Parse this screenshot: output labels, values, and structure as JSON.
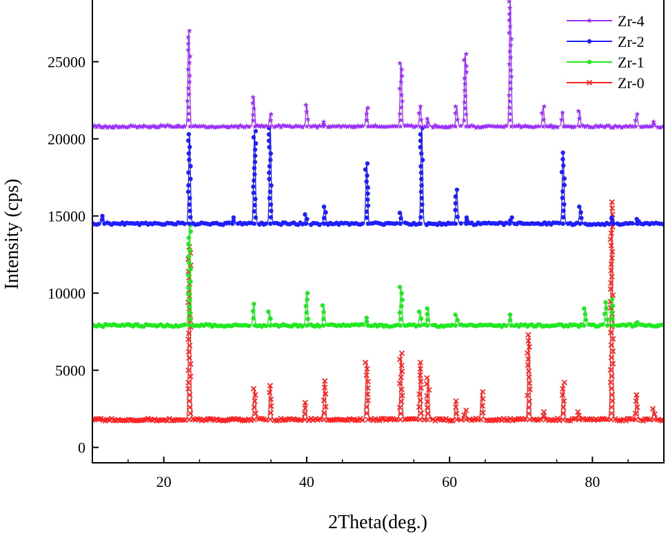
{
  "chart_data": {
    "type": "line",
    "title": "",
    "xlabel": "2Theta(deg.)",
    "ylabel": "Intensity (cps)",
    "xlim": [
      10,
      90
    ],
    "ylim": [
      -1000,
      29000
    ],
    "x_ticks": [
      20,
      40,
      60,
      80
    ],
    "x_tick_labels": [
      "20",
      "40",
      "60",
      "80"
    ],
    "y_ticks": [
      0,
      5000,
      10000,
      15000,
      20000,
      25000
    ],
    "y_tick_labels": [
      "0",
      "5000",
      "10000",
      "15000",
      "20000",
      "25000"
    ],
    "grid": false,
    "legend_position": "top-right",
    "series": [
      {
        "name": "Zr-4",
        "color": "#9b30ff",
        "marker": "star",
        "baseline": 20800,
        "peaks": [
          {
            "x": 23.5,
            "y": 27000
          },
          {
            "x": 32.6,
            "y": 22700
          },
          {
            "x": 34.9,
            "y": 21600
          },
          {
            "x": 40.0,
            "y": 22200
          },
          {
            "x": 42.4,
            "y": 21100
          },
          {
            "x": 48.4,
            "y": 22000
          },
          {
            "x": 53.2,
            "y": 24900
          },
          {
            "x": 55.9,
            "y": 22100
          },
          {
            "x": 57.0,
            "y": 21300
          },
          {
            "x": 61.0,
            "y": 22100
          },
          {
            "x": 62.2,
            "y": 25500
          },
          {
            "x": 68.5,
            "y": 28900
          },
          {
            "x": 73.1,
            "y": 22100
          },
          {
            "x": 75.8,
            "y": 21700
          },
          {
            "x": 78.2,
            "y": 21800
          },
          {
            "x": 86.2,
            "y": 21600
          },
          {
            "x": 88.5,
            "y": 21100
          }
        ]
      },
      {
        "name": "Zr-2",
        "color": "#1e1eff",
        "marker": "circle",
        "baseline": 14500,
        "peaks": [
          {
            "x": 11.5,
            "y": 15000
          },
          {
            "x": 23.6,
            "y": 20300
          },
          {
            "x": 29.8,
            "y": 14900
          },
          {
            "x": 32.7,
            "y": 20500
          },
          {
            "x": 34.9,
            "y": 20700
          },
          {
            "x": 39.9,
            "y": 15100
          },
          {
            "x": 42.5,
            "y": 15600
          },
          {
            "x": 48.4,
            "y": 18400
          },
          {
            "x": 53.2,
            "y": 15200
          },
          {
            "x": 56.1,
            "y": 20700
          },
          {
            "x": 61.0,
            "y": 16700
          },
          {
            "x": 62.3,
            "y": 14900
          },
          {
            "x": 68.6,
            "y": 14900
          },
          {
            "x": 75.9,
            "y": 19100
          },
          {
            "x": 78.3,
            "y": 15600
          },
          {
            "x": 82.8,
            "y": 14900
          },
          {
            "x": 86.3,
            "y": 14800
          }
        ]
      },
      {
        "name": "Zr-1",
        "color": "#22e822",
        "marker": "circle",
        "baseline": 7900,
        "peaks": [
          {
            "x": 23.6,
            "y": 14400
          },
          {
            "x": 32.6,
            "y": 9300
          },
          {
            "x": 34.8,
            "y": 8800
          },
          {
            "x": 40.0,
            "y": 10000
          },
          {
            "x": 42.4,
            "y": 9200
          },
          {
            "x": 48.4,
            "y": 8400
          },
          {
            "x": 53.2,
            "y": 10400
          },
          {
            "x": 55.9,
            "y": 8800
          },
          {
            "x": 57.0,
            "y": 9000
          },
          {
            "x": 61.0,
            "y": 8600
          },
          {
            "x": 68.5,
            "y": 8600
          },
          {
            "x": 79.0,
            "y": 9000
          },
          {
            "x": 81.9,
            "y": 9400
          },
          {
            "x": 82.8,
            "y": 9600
          },
          {
            "x": 86.2,
            "y": 8100
          }
        ]
      },
      {
        "name": "Zr-0",
        "color": "#ff2222",
        "marker": "x",
        "baseline": 1800,
        "peaks": [
          {
            "x": 23.6,
            "y": 13000
          },
          {
            "x": 32.7,
            "y": 3800
          },
          {
            "x": 34.9,
            "y": 4000
          },
          {
            "x": 39.8,
            "y": 2900
          },
          {
            "x": 42.5,
            "y": 4300
          },
          {
            "x": 48.4,
            "y": 5500
          },
          {
            "x": 53.2,
            "y": 6100
          },
          {
            "x": 55.9,
            "y": 5500
          },
          {
            "x": 57.0,
            "y": 4500
          },
          {
            "x": 60.9,
            "y": 3000
          },
          {
            "x": 62.2,
            "y": 2400
          },
          {
            "x": 64.5,
            "y": 3600
          },
          {
            "x": 71.1,
            "y": 7300
          },
          {
            "x": 73.3,
            "y": 2300
          },
          {
            "x": 75.9,
            "y": 4200
          },
          {
            "x": 78.1,
            "y": 2300
          },
          {
            "x": 82.7,
            "y": 15900
          },
          {
            "x": 86.2,
            "y": 3400
          },
          {
            "x": 88.6,
            "y": 2500
          }
        ]
      }
    ]
  }
}
